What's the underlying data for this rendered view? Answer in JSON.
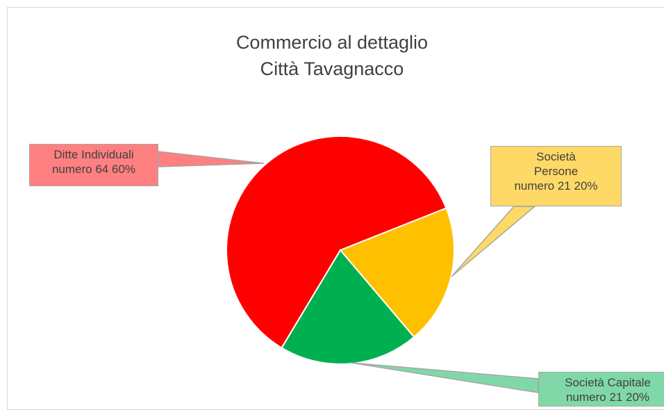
{
  "chart_data": {
    "type": "pie",
    "title": [
      "Commercio al dettaglio",
      "Città Tavagnacco"
    ],
    "categories": [
      "Ditte Individuali",
      "Società Persone",
      "Società Capitale"
    ],
    "value_name": "numero",
    "values": [
      64,
      21,
      21
    ],
    "percentages": [
      60,
      20,
      20
    ],
    "percentage_labels": [
      "60%",
      "20%",
      "20%"
    ],
    "colors": [
      "#ff0000",
      "#ffc000",
      "#00b050"
    ],
    "label_colors": [
      "#ff8080",
      "#ffd966",
      "#80d8a8"
    ]
  }
}
